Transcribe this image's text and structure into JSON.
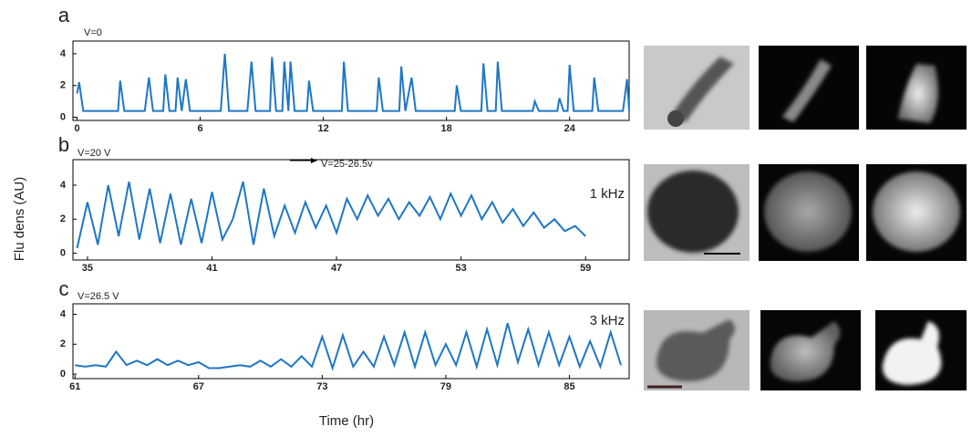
{
  "chart_data": [
    {
      "type": "line",
      "panel": "a",
      "annotations": [
        "V=0"
      ],
      "color": "#1f77c4",
      "xlim": [
        -0.2,
        26.9
      ],
      "xticks": [
        0,
        6,
        12,
        18,
        24
      ],
      "ylim": [
        -0.2,
        4.8
      ],
      "yticks": [
        0,
        2,
        4
      ],
      "x": [
        0,
        0.1,
        0.3,
        2.0,
        2.1,
        2.3,
        3.3,
        3.5,
        3.7,
        4.2,
        4.3,
        4.5,
        4.8,
        4.9,
        5.1,
        5.3,
        5.5,
        7.0,
        7.2,
        7.4,
        8.3,
        8.5,
        8.7,
        9.4,
        9.5,
        9.7,
        10.0,
        10.1,
        10.3,
        10.4,
        10.6,
        11.2,
        11.3,
        11.5,
        12.9,
        13.0,
        13.2,
        14.6,
        14.7,
        14.9,
        15.7,
        15.8,
        16.0,
        16.3,
        16.5,
        18.4,
        18.5,
        18.7,
        19.7,
        19.8,
        20.0,
        20.4,
        20.5,
        20.7,
        22.2,
        22.3,
        22.5,
        23.4,
        23.5,
        23.7,
        23.9,
        24.0,
        24.2,
        25.1,
        25.2,
        25.4,
        26.6,
        26.8,
        26.9
      ],
      "values": [
        1.5,
        2.2,
        0.4,
        0.4,
        2.3,
        0.4,
        0.4,
        2.5,
        0.4,
        0.4,
        2.7,
        0.4,
        0.4,
        2.5,
        0.4,
        2.4,
        0.4,
        0.4,
        4.0,
        0.4,
        0.4,
        3.5,
        0.4,
        0.4,
        3.8,
        0.4,
        0.4,
        3.5,
        0.4,
        3.5,
        0.4,
        0.4,
        2.3,
        0.4,
        0.4,
        3.5,
        0.4,
        0.4,
        2.5,
        0.4,
        0.4,
        3.2,
        0.4,
        2.5,
        0.4,
        0.4,
        2.0,
        0.4,
        0.4,
        3.4,
        0.4,
        0.4,
        3.5,
        0.4,
        0.4,
        1.0,
        0.4,
        0.4,
        1.2,
        0.4,
        0.4,
        3.3,
        0.4,
        0.4,
        2.5,
        0.4,
        0.4,
        2.4,
        0.4
      ]
    },
    {
      "type": "line",
      "panel": "b",
      "annotations": [
        "V=20 V",
        "V=25-26.5v",
        "1 kHz"
      ],
      "ylabel": "Flu dens (AU)",
      "color": "#1f77c4",
      "xlim": [
        34.3,
        61.1
      ],
      "xticks": [
        35,
        41,
        47,
        53,
        59
      ],
      "ylim": [
        -0.4,
        5.5
      ],
      "yticks": [
        0,
        2,
        4
      ],
      "x": [
        34.5,
        35,
        35.5,
        36,
        36.5,
        37,
        37.5,
        38,
        38.5,
        39,
        39.5,
        40,
        40.5,
        41,
        41.5,
        42,
        42.5,
        43,
        43.5,
        44,
        44.5,
        45,
        45.5,
        46,
        46.5,
        47,
        47.5,
        48,
        48.5,
        49,
        49.5,
        50,
        50.5,
        51,
        51.5,
        52,
        52.5,
        53,
        53.5,
        54,
        54.5,
        55,
        55.5,
        56,
        56.5,
        57,
        57.5,
        58,
        58.5,
        59
      ],
      "values": [
        0.3,
        3.0,
        0.5,
        4.0,
        1.0,
        4.2,
        0.8,
        3.8,
        0.6,
        3.5,
        0.5,
        3.2,
        0.6,
        3.6,
        0.8,
        2.0,
        4.2,
        0.5,
        3.8,
        1.0,
        2.8,
        1.2,
        3.0,
        1.5,
        2.8,
        1.2,
        3.2,
        2.0,
        3.4,
        2.2,
        3.2,
        2.0,
        3.0,
        2.2,
        3.3,
        2.0,
        3.5,
        2.2,
        3.4,
        2.0,
        3.0,
        1.8,
        2.6,
        1.6,
        2.4,
        1.5,
        2.0,
        1.3,
        1.6,
        1.0
      ]
    },
    {
      "type": "line",
      "panel": "c",
      "annotations": [
        "V=26.5 V",
        "3 kHz"
      ],
      "xlabel": "Time (hr)",
      "color": "#1f77c4",
      "xlim": [
        60.9,
        87.9
      ],
      "xticks": [
        61,
        67,
        73,
        79,
        85
      ],
      "ylim": [
        -0.3,
        4.7
      ],
      "yticks": [
        0,
        2,
        4
      ],
      "x": [
        61,
        61.5,
        62,
        62.5,
        63,
        63.5,
        64,
        64.5,
        65,
        65.5,
        66,
        66.5,
        67,
        67.5,
        68,
        68.5,
        69,
        69.5,
        70,
        70.5,
        71,
        71.5,
        72,
        72.5,
        73,
        73.5,
        74,
        74.5,
        75,
        75.5,
        76,
        76.5,
        77,
        77.5,
        78,
        78.5,
        79,
        79.5,
        80,
        80.5,
        81,
        81.5,
        82,
        82.5,
        83,
        83.5,
        84,
        84.5,
        85,
        85.5,
        86,
        86.5,
        87,
        87.5
      ],
      "values": [
        0.6,
        0.5,
        0.6,
        0.5,
        1.5,
        0.6,
        0.9,
        0.6,
        1.0,
        0.6,
        0.9,
        0.6,
        0.8,
        0.4,
        0.4,
        0.5,
        0.6,
        0.5,
        0.9,
        0.5,
        1.0,
        0.5,
        1.2,
        0.5,
        2.5,
        0.4,
        2.6,
        0.5,
        1.5,
        0.5,
        2.5,
        0.6,
        2.8,
        0.5,
        2.8,
        0.6,
        2.0,
        0.6,
        2.8,
        0.5,
        3.0,
        0.6,
        3.4,
        0.8,
        3.0,
        0.6,
        2.8,
        0.6,
        2.5,
        0.5,
        2.2,
        0.5,
        2.8,
        0.6
      ]
    }
  ]
}
